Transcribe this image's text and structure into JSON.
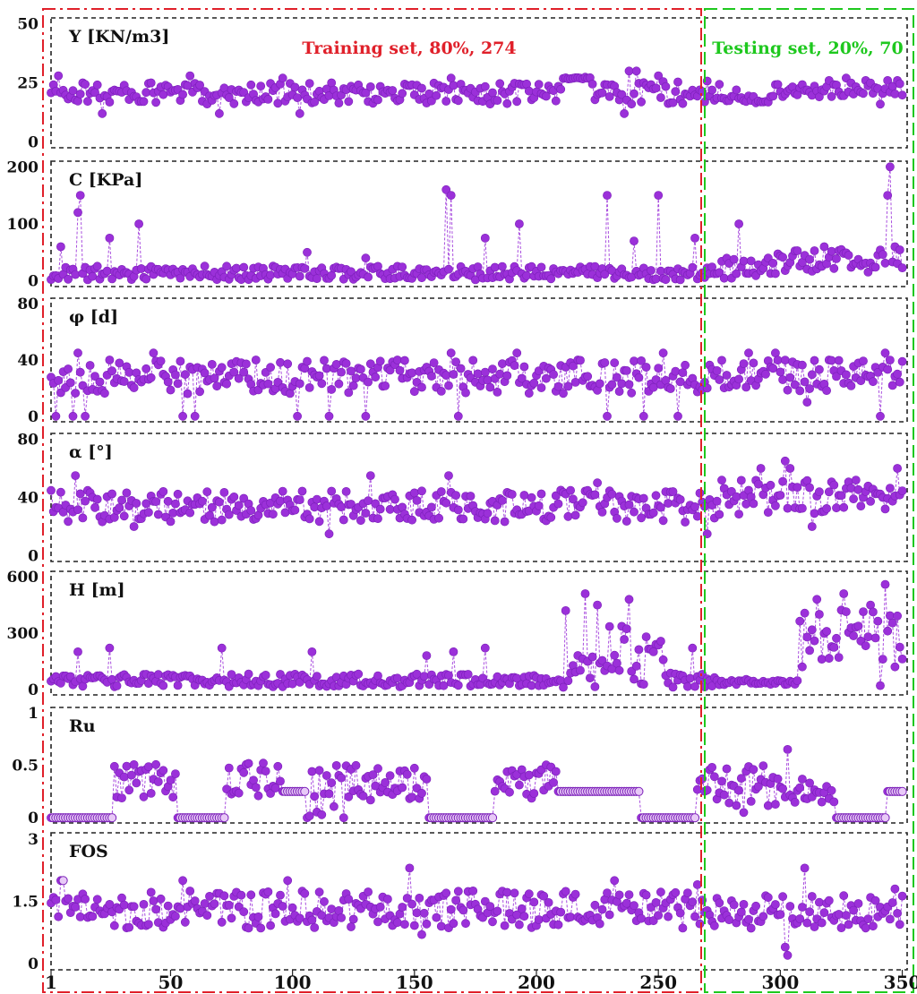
{
  "chart_data": {
    "type": "scatter",
    "x_ticks": [
      "1",
      "50",
      "100",
      "150",
      "200",
      "250",
      "300",
      "350"
    ],
    "x_tick_values": [
      1,
      50,
      100,
      150,
      200,
      250,
      300,
      350
    ],
    "xlim": [
      1,
      352
    ],
    "split_index": 274,
    "training_label": "Training set, 80%, 274",
    "testing_label": "Testing set, 20%, 70",
    "colors": {
      "marker": "#9b30d9",
      "marker_edge": "#7a1fb8",
      "training_border": "#e0202a",
      "testing_border": "#1ec81e",
      "panel_border": "#222222"
    },
    "panels": [
      {
        "label": "Y [KN/m3]",
        "ylim": [
          0,
          50
        ],
        "yticks": [
          "50",
          "25",
          "0"
        ],
        "ytick_values": [
          50,
          25,
          0
        ],
        "segments": [
          {
            "x0": 1,
            "x1": 210,
            "base": 20.5,
            "amp": 4.5,
            "spikes": [
              [
                4,
                28
              ],
              [
                14,
                25
              ],
              [
                22,
                12
              ],
              [
                48,
                24
              ],
              [
                58,
                28
              ],
              [
                70,
                12
              ],
              [
                96,
                27
              ],
              [
                103,
                12
              ],
              [
                116,
                25
              ],
              [
                152,
                18
              ],
              [
                165,
                27
              ]
            ]
          },
          {
            "x0": 211,
            "x1": 222,
            "base": 27,
            "amp": 0.5,
            "spikes": []
          },
          {
            "x0": 223,
            "x1": 275,
            "base": 21,
            "amp": 5,
            "spikes": [
              [
                236,
                12
              ],
              [
                238,
                30
              ],
              [
                241,
                30
              ],
              [
                250,
                28
              ],
              [
                259,
                18
              ],
              [
                267,
                22
              ]
            ]
          },
          {
            "x0": 276,
            "x1": 295,
            "base": 18,
            "amp": 1.5,
            "spikes": [
              [
                282,
                22
              ]
            ]
          },
          {
            "x0": 296,
            "x1": 350,
            "base": 22,
            "amp": 3,
            "spikes": [
              [
                320,
                26
              ],
              [
                327,
                27
              ],
              [
                335,
                26
              ],
              [
                341,
                16
              ],
              [
                344,
                26
              ],
              [
                348,
                26
              ]
            ]
          }
        ]
      },
      {
        "label": "C [KPa]",
        "ylim": [
          0,
          200
        ],
        "yticks": [
          "200",
          "100",
          "0"
        ],
        "ytick_values": [
          200,
          100,
          0
        ],
        "segments": [
          {
            "x0": 1,
            "x1": 275,
            "base": 14,
            "amp": 12,
            "spikes": [
              [
                5,
                60
              ],
              [
                12,
                120
              ],
              [
                13,
                150
              ],
              [
                25,
                75
              ],
              [
                37,
                100
              ],
              [
                106,
                50
              ],
              [
                130,
                40
              ],
              [
                163,
                160
              ],
              [
                165,
                150
              ],
              [
                179,
                75
              ],
              [
                193,
                100
              ],
              [
                229,
                150
              ],
              [
                240,
                70
              ],
              [
                250,
                150
              ],
              [
                265,
                75
              ]
            ]
          },
          {
            "x0": 276,
            "x1": 298,
            "base": 22,
            "amp": 18,
            "spikes": [
              [
                283,
                100
              ],
              [
                295,
                40
              ]
            ]
          },
          {
            "x0": 299,
            "x1": 350,
            "base": 35,
            "amp": 20,
            "spikes": [
              [
                318,
                60
              ],
              [
                325,
                55
              ],
              [
                344,
                150
              ],
              [
                345,
                200
              ],
              [
                347,
                60
              ]
            ]
          }
        ]
      },
      {
        "label": "φ [d]",
        "ylim": [
          0,
          80
        ],
        "yticks": [
          "80",
          "40",
          "0"
        ],
        "ytick_values": [
          80,
          40,
          0
        ],
        "segments": [
          {
            "x0": 1,
            "x1": 275,
            "base": 28,
            "amp": 12,
            "spikes": [
              [
                3,
                0
              ],
              [
                10,
                0
              ],
              [
                12,
                45
              ],
              [
                15,
                0
              ],
              [
                25,
                40
              ],
              [
                43,
                45
              ],
              [
                55,
                0
              ],
              [
                60,
                0
              ],
              [
                85,
                40
              ],
              [
                102,
                0
              ],
              [
                115,
                0
              ],
              [
                130,
                0
              ],
              [
                143,
                40
              ],
              [
                165,
                45
              ],
              [
                168,
                0
              ],
              [
                192,
                45
              ],
              [
                217,
                40
              ],
              [
                229,
                0
              ],
              [
                244,
                0
              ],
              [
                252,
                45
              ],
              [
                258,
                0
              ],
              [
                270,
                20
              ]
            ]
          },
          {
            "x0": 276,
            "x1": 350,
            "base": 29,
            "amp": 11,
            "spikes": [
              [
                287,
                45
              ],
              [
                298,
                45
              ],
              [
                311,
                10
              ],
              [
                320,
                40
              ],
              [
                341,
                0
              ],
              [
                343,
                45
              ],
              [
                348,
                30
              ]
            ]
          }
        ]
      },
      {
        "label": "α [°]",
        "ylim": [
          0,
          80
        ],
        "yticks": [
          "80",
          "40",
          "0"
        ],
        "ytick_values": [
          80,
          40,
          0
        ],
        "segments": [
          {
            "x0": 1,
            "x1": 275,
            "base": 34,
            "amp": 11,
            "spikes": [
              [
                11,
                55
              ],
              [
                35,
                20
              ],
              [
                115,
                15
              ],
              [
                132,
                55
              ],
              [
                164,
                55
              ],
              [
                210,
                45
              ],
              [
                225,
                50
              ],
              [
                270,
                15
              ]
            ]
          },
          {
            "x0": 276,
            "x1": 350,
            "base": 40,
            "amp": 12,
            "spikes": [
              [
                292,
                60
              ],
              [
                302,
                65
              ],
              [
                304,
                60
              ],
              [
                313,
                20
              ],
              [
                342,
                40
              ],
              [
                348,
                60
              ]
            ]
          }
        ]
      },
      {
        "label": "H [m]",
        "ylim": [
          0,
          600
        ],
        "yticks": [
          "600",
          "300",
          "0"
        ],
        "ytick_values": [
          600,
          300,
          0
        ],
        "segments": [
          {
            "x0": 1,
            "x1": 210,
            "base": 48,
            "amp": 35,
            "spikes": [
              [
                12,
                200
              ],
              [
                25,
                220
              ],
              [
                71,
                220
              ],
              [
                108,
                200
              ],
              [
                155,
                180
              ],
              [
                166,
                200
              ],
              [
                179,
                220
              ]
            ]
          },
          {
            "x0": 211,
            "x1": 252,
            "base": 190,
            "amp": 180,
            "spikes": [
              [
                212,
                420
              ],
              [
                220,
                510
              ],
              [
                225,
                450
              ],
              [
                238,
                480
              ],
              [
                228,
                100
              ],
              [
                243,
                30
              ]
            ]
          },
          {
            "x0": 253,
            "x1": 275,
            "base": 50,
            "amp": 40,
            "spikes": [
              [
                264,
                220
              ]
            ]
          },
          {
            "x0": 276,
            "x1": 307,
            "base": 40,
            "amp": 15,
            "spikes": []
          },
          {
            "x0": 308,
            "x1": 350,
            "base": 270,
            "amp": 160,
            "spikes": [
              [
                315,
                480
              ],
              [
                326,
                510
              ],
              [
                337,
                450
              ],
              [
                343,
                560
              ],
              [
                341,
                20
              ],
              [
                347,
                120
              ]
            ]
          }
        ]
      },
      {
        "label": "Ru",
        "ylim": [
          0,
          1
        ],
        "yticks": [
          "1",
          "0.5",
          "0"
        ],
        "ytick_values": [
          1,
          0.5,
          0
        ],
        "segments": [
          {
            "x0": 1,
            "x1": 26,
            "base": 0,
            "amp": 0,
            "spikes": []
          },
          {
            "x0": 27,
            "x1": 52,
            "base": 0.33,
            "amp": 0.18,
            "spikes": []
          },
          {
            "x0": 53,
            "x1": 72,
            "base": 0,
            "amp": 0,
            "spikes": []
          },
          {
            "x0": 73,
            "x1": 95,
            "base": 0.36,
            "amp": 0.16,
            "spikes": []
          },
          {
            "x0": 96,
            "x1": 105,
            "base": 0.25,
            "amp": 0,
            "spikes": []
          },
          {
            "x0": 106,
            "x1": 122,
            "base": 0.25,
            "amp": 0.25,
            "spikes": [
              [
                106,
                0
              ],
              [
                121,
                0
              ]
            ]
          },
          {
            "x0": 123,
            "x1": 155,
            "base": 0.33,
            "amp": 0.17,
            "spikes": []
          },
          {
            "x0": 156,
            "x1": 182,
            "base": 0,
            "amp": 0,
            "spikes": []
          },
          {
            "x0": 183,
            "x1": 208,
            "base": 0.35,
            "amp": 0.17,
            "spikes": []
          },
          {
            "x0": 209,
            "x1": 242,
            "base": 0.25,
            "amp": 0,
            "spikes": []
          },
          {
            "x0": 243,
            "x1": 265,
            "base": 0,
            "amp": 0,
            "spikes": []
          },
          {
            "x0": 266,
            "x1": 310,
            "base": 0.3,
            "amp": 0.2,
            "spikes": [
              [
                303,
                0.65
              ],
              [
                285,
                0.05
              ]
            ]
          },
          {
            "x0": 311,
            "x1": 322,
            "base": 0.25,
            "amp": 0.1,
            "spikes": []
          },
          {
            "x0": 323,
            "x1": 343,
            "base": 0,
            "amp": 0,
            "spikes": []
          },
          {
            "x0": 344,
            "x1": 350,
            "base": 0.25,
            "amp": 0,
            "spikes": []
          }
        ]
      },
      {
        "label": "FOS",
        "ylim": [
          0,
          3
        ],
        "yticks": [
          "3",
          "1.5",
          "0"
        ],
        "ytick_values": [
          3,
          1.5,
          0
        ],
        "segments": [
          {
            "x0": 1,
            "x1": 275,
            "base": 1.3,
            "amp": 0.45,
            "spikes": [
              [
                5,
                2.0
              ],
              [
                6,
                2.0
              ],
              [
                55,
                2.0
              ],
              [
                98,
                2.0
              ],
              [
                148,
                2.3
              ],
              [
                153,
                0.7
              ],
              [
                232,
                2.0
              ],
              [
                266,
                1.9
              ]
            ]
          },
          {
            "x0": 276,
            "x1": 350,
            "base": 1.25,
            "amp": 0.4,
            "spikes": [
              [
                303,
                0.2
              ],
              [
                302,
                0.4
              ],
              [
                310,
                2.3
              ],
              [
                347,
                1.8
              ]
            ]
          }
        ]
      }
    ]
  }
}
